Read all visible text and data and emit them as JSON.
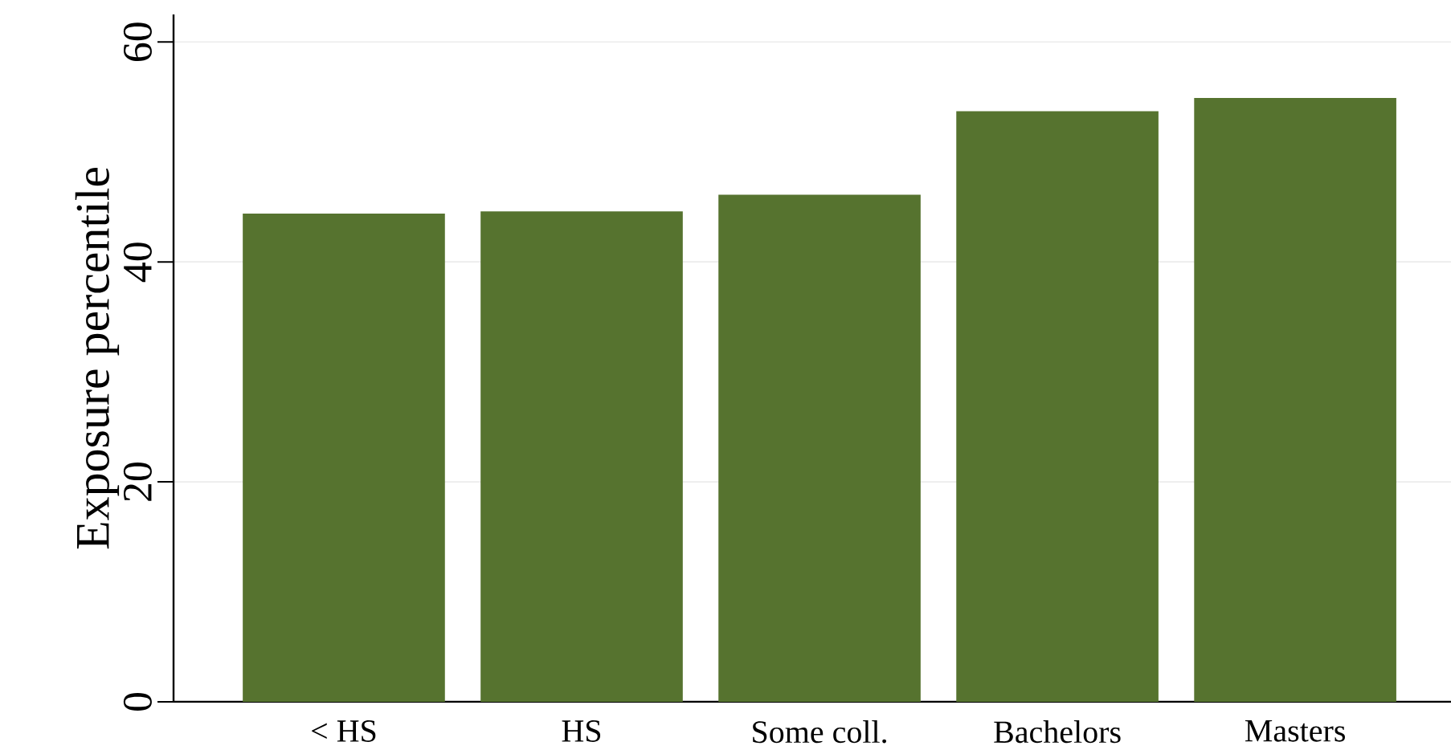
{
  "chart_data": {
    "type": "bar",
    "ylabel": "Exposure percentile",
    "categories": [
      "< HS",
      "HS",
      "Some coll.",
      "Bachelors",
      "Masters"
    ],
    "values": [
      44.4,
      44.6,
      46.1,
      53.7,
      54.9
    ],
    "color": "#56732f",
    "ylim": [
      0,
      62.5
    ],
    "yticks": [
      0,
      20,
      40,
      60
    ],
    "grid": "y"
  }
}
